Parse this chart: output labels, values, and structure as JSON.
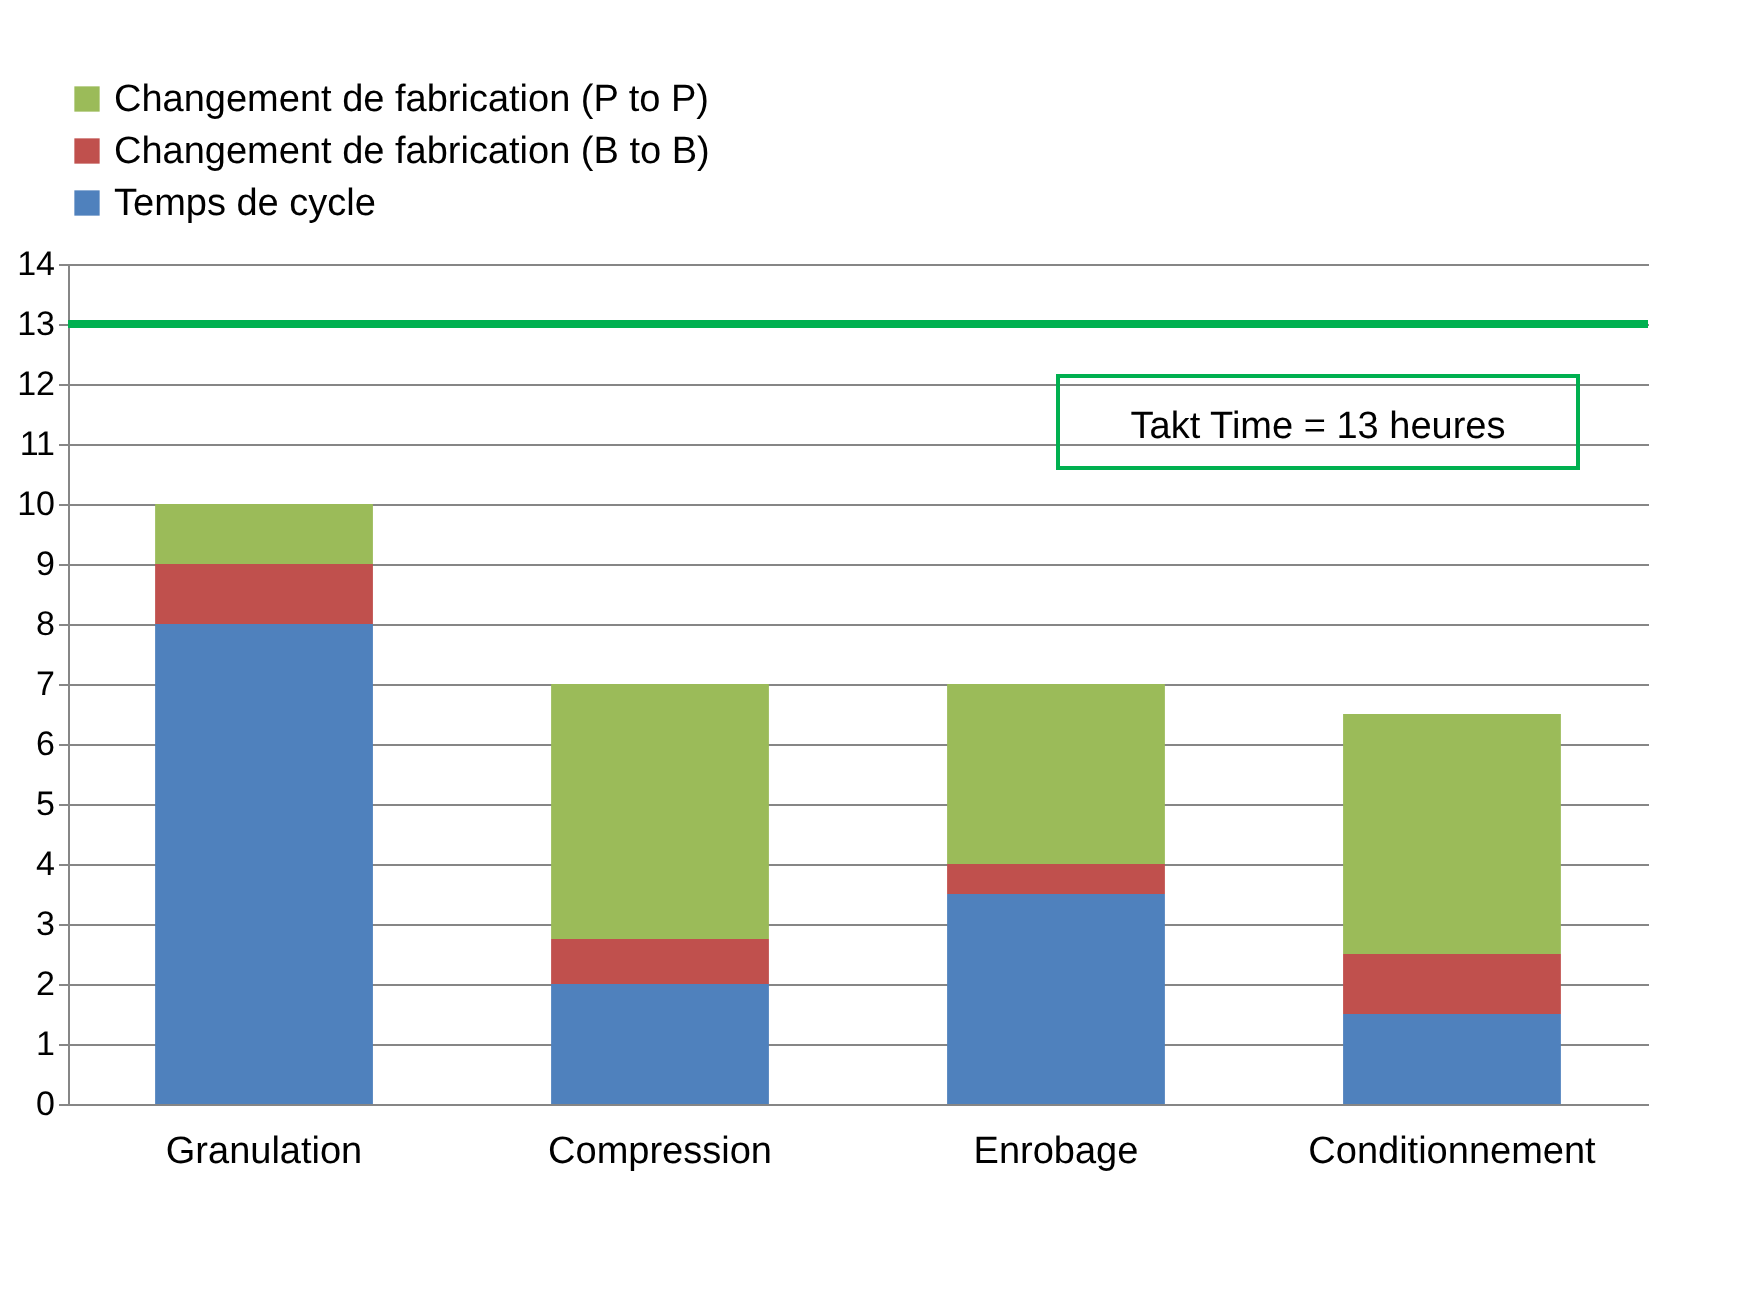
{
  "chart_data": {
    "type": "bar",
    "stacked": true,
    "categories": [
      "Granulation",
      "Compression",
      "Enrobage",
      "Conditionnement"
    ],
    "series": [
      {
        "name": "Temps de cycle",
        "color": "#4f81bd",
        "values": [
          8,
          2,
          3.5,
          1.5
        ]
      },
      {
        "name": "Changement de fabrication (B to B)",
        "color": "#c0504d",
        "values": [
          1,
          0.75,
          0.5,
          1
        ]
      },
      {
        "name": "Changement de fabrication (P to P)",
        "color": "#9bbb59",
        "values": [
          1,
          4.25,
          3,
          4
        ]
      }
    ],
    "ylim": [
      0,
      14
    ],
    "yticks": [
      0,
      1,
      2,
      3,
      4,
      5,
      6,
      7,
      8,
      9,
      10,
      11,
      12,
      13,
      14
    ],
    "grid": "y",
    "legend": "top",
    "ref_lines": [
      {
        "axis": "y",
        "value": 13,
        "label": "Takt Time = 13 heures",
        "color": "#00b050"
      }
    ]
  }
}
